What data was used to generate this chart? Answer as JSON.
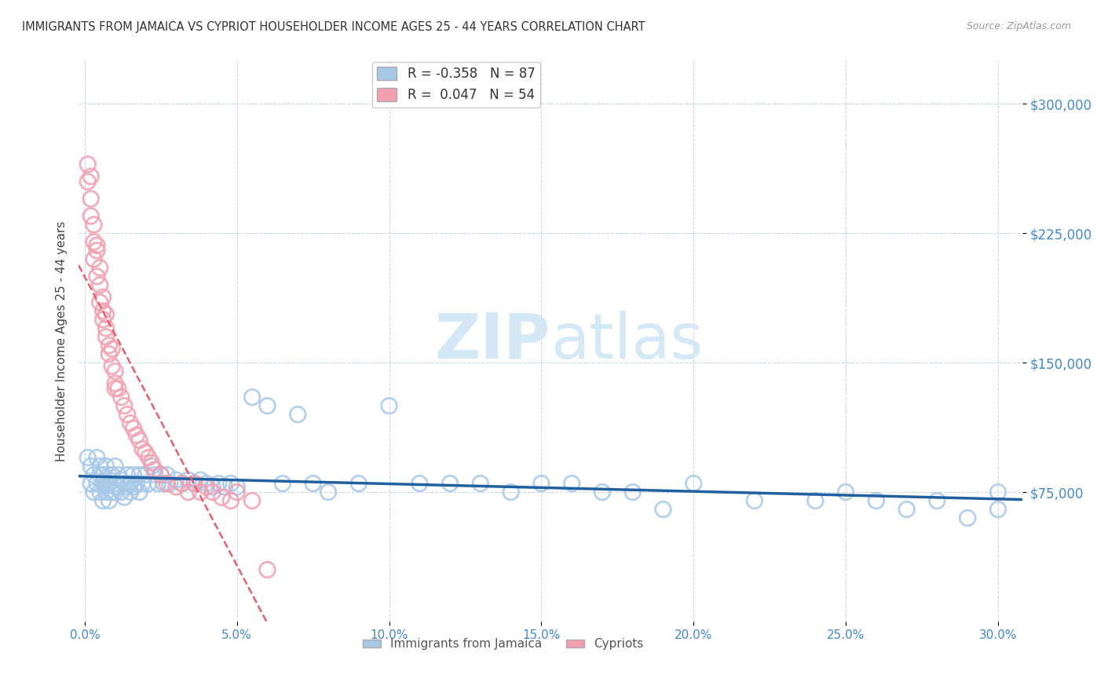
{
  "title": "IMMIGRANTS FROM JAMAICA VS CYPRIOT HOUSEHOLDER INCOME AGES 25 - 44 YEARS CORRELATION CHART",
  "source": "Source: ZipAtlas.com",
  "ylabel": "Householder Income Ages 25 - 44 years",
  "xlabel_ticks": [
    "0.0%",
    "5.0%",
    "10.0%",
    "15.0%",
    "20.0%",
    "25.0%",
    "30.0%"
  ],
  "xlabel_vals": [
    0.0,
    0.05,
    0.1,
    0.15,
    0.2,
    0.25,
    0.3
  ],
  "ytick_labels": [
    "$75,000",
    "$150,000",
    "$225,000",
    "$300,000"
  ],
  "ytick_vals": [
    75000,
    150000,
    225000,
    300000
  ],
  "ylim": [
    0,
    325000
  ],
  "xlim": [
    -0.002,
    0.308
  ],
  "jamaica_R": -0.358,
  "jamaica_N": 87,
  "cypriot_R": 0.047,
  "cypriot_N": 54,
  "jamaica_color": "#a8c8e8",
  "cypriot_color": "#f2a0b0",
  "jamaica_line_color": "#2060a0",
  "cypriot_line_color": "#e06070",
  "background_color": "#ffffff",
  "grid_color": "#c8d8e8",
  "axis_label_color": "#4488cc",
  "watermark_color": "#d5e8f5",
  "jamaica_x": [
    0.001,
    0.002,
    0.002,
    0.003,
    0.003,
    0.004,
    0.004,
    0.005,
    0.005,
    0.005,
    0.006,
    0.006,
    0.006,
    0.007,
    0.007,
    0.007,
    0.008,
    0.008,
    0.008,
    0.009,
    0.009,
    0.01,
    0.01,
    0.01,
    0.011,
    0.011,
    0.012,
    0.012,
    0.013,
    0.013,
    0.014,
    0.014,
    0.015,
    0.015,
    0.016,
    0.016,
    0.017,
    0.018,
    0.018,
    0.019,
    0.02,
    0.021,
    0.022,
    0.023,
    0.024,
    0.025,
    0.026,
    0.027,
    0.028,
    0.03,
    0.032,
    0.034,
    0.036,
    0.038,
    0.04,
    0.042,
    0.044,
    0.046,
    0.048,
    0.05,
    0.055,
    0.06,
    0.065,
    0.07,
    0.075,
    0.08,
    0.09,
    0.1,
    0.11,
    0.12,
    0.13,
    0.14,
    0.15,
    0.16,
    0.17,
    0.18,
    0.19,
    0.2,
    0.22,
    0.24,
    0.25,
    0.26,
    0.27,
    0.28,
    0.29,
    0.3,
    0.3
  ],
  "jamaica_y": [
    95000,
    90000,
    80000,
    85000,
    75000,
    95000,
    80000,
    90000,
    85000,
    75000,
    80000,
    70000,
    85000,
    90000,
    75000,
    80000,
    85000,
    70000,
    80000,
    75000,
    85000,
    90000,
    80000,
    75000,
    85000,
    78000,
    82000,
    75000,
    80000,
    72000,
    78000,
    85000,
    80000,
    75000,
    85000,
    78000,
    80000,
    75000,
    85000,
    80000,
    85000,
    80000,
    90000,
    85000,
    80000,
    85000,
    80000,
    85000,
    80000,
    82000,
    80000,
    82000,
    80000,
    82000,
    80000,
    78000,
    80000,
    78000,
    80000,
    78000,
    130000,
    125000,
    80000,
    120000,
    80000,
    75000,
    80000,
    125000,
    80000,
    80000,
    80000,
    75000,
    80000,
    80000,
    75000,
    75000,
    65000,
    80000,
    70000,
    70000,
    75000,
    70000,
    65000,
    70000,
    60000,
    65000,
    75000
  ],
  "cypriot_x": [
    0.001,
    0.001,
    0.002,
    0.002,
    0.002,
    0.003,
    0.003,
    0.003,
    0.004,
    0.004,
    0.004,
    0.005,
    0.005,
    0.005,
    0.006,
    0.006,
    0.006,
    0.007,
    0.007,
    0.007,
    0.008,
    0.008,
    0.009,
    0.009,
    0.01,
    0.01,
    0.011,
    0.012,
    0.013,
    0.014,
    0.015,
    0.016,
    0.017,
    0.018,
    0.019,
    0.02,
    0.021,
    0.022,
    0.023,
    0.025,
    0.027,
    0.03,
    0.032,
    0.034,
    0.036,
    0.038,
    0.04,
    0.042,
    0.045,
    0.048,
    0.05,
    0.055,
    0.06,
    0.01
  ],
  "cypriot_y": [
    265000,
    255000,
    245000,
    235000,
    258000,
    230000,
    220000,
    210000,
    218000,
    200000,
    215000,
    195000,
    185000,
    205000,
    180000,
    175000,
    188000,
    170000,
    165000,
    178000,
    160000,
    155000,
    148000,
    158000,
    145000,
    138000,
    135000,
    130000,
    125000,
    120000,
    115000,
    112000,
    108000,
    105000,
    100000,
    98000,
    95000,
    92000,
    88000,
    85000,
    80000,
    78000,
    80000,
    75000,
    80000,
    75000,
    78000,
    75000,
    72000,
    70000,
    75000,
    70000,
    30000,
    135000
  ]
}
